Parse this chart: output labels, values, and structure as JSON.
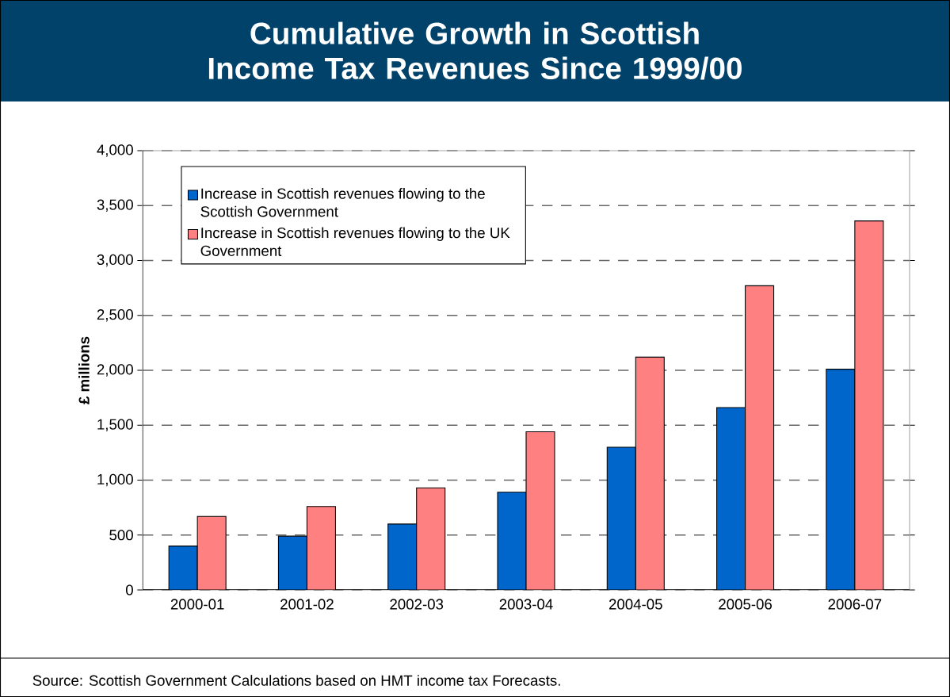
{
  "chart_data": {
    "type": "bar",
    "title": "Cumulative Growth in Scottish Income Tax Revenues Since 1999/00",
    "ylabel": "£ millions",
    "categories": [
      "2000-01",
      "2001-02",
      "2002-03",
      "2003-04",
      "2004-05",
      "2005-06",
      "2006-07"
    ],
    "series": [
      {
        "name": "Increase in Scottish revenues flowing to the Scottish Government",
        "color": "#0066cc",
        "values": [
          400,
          490,
          600,
          890,
          1300,
          1660,
          2010
        ]
      },
      {
        "name": "Increase in Scottish revenues flowing to the UK Government",
        "color": "#ff8080",
        "values": [
          670,
          760,
          930,
          1440,
          2120,
          2770,
          3360
        ]
      }
    ],
    "ylim": [
      0,
      4000
    ],
    "yticks": [
      {
        "value": 0,
        "label": "0"
      },
      {
        "value": 500,
        "label": "500"
      },
      {
        "value": 1000,
        "label": "1,000"
      },
      {
        "value": 1500,
        "label": "1,500"
      },
      {
        "value": 2000,
        "label": "2,000"
      },
      {
        "value": 2500,
        "label": "2,500"
      },
      {
        "value": 3000,
        "label": "3,000"
      },
      {
        "value": 3500,
        "label": "3,500"
      },
      {
        "value": 4000,
        "label": "4,000"
      }
    ],
    "grid": "y",
    "legend": "top left",
    "annotations": [
      "Source: Scottish Government Calculations based on HMT income tax Forecasts."
    ]
  }
}
